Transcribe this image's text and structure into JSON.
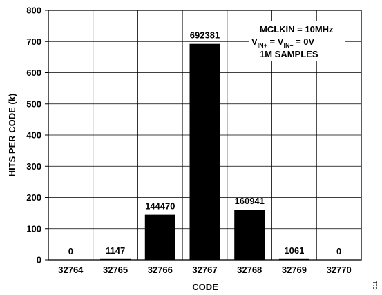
{
  "chart_data": {
    "type": "bar",
    "categories": [
      "32764",
      "32765",
      "32766",
      "32767",
      "32768",
      "32769",
      "32770"
    ],
    "values": [
      0,
      1147,
      144470,
      692381,
      160941,
      1061,
      0
    ],
    "value_labels": [
      "0",
      "1147",
      "144470",
      "692381",
      "160941",
      "1061",
      "0"
    ],
    "unit_divisor": 1000,
    "xlabel": "CODE",
    "ylabel": "HITS PER CODE (k)",
    "ylim": [
      0,
      800
    ],
    "yticks": [
      0,
      100,
      200,
      300,
      400,
      500,
      600,
      700,
      800
    ],
    "grid": true,
    "bar_color": "#000000",
    "annotation": {
      "line1": "MCLKIN = 10MHz",
      "line2": {
        "v1": "V",
        "s1": "IN+",
        "mid": " = V",
        "s2": "IN–",
        "end": " = 0V"
      },
      "line3": "1M SAMPLES"
    },
    "figure_id": "011"
  }
}
